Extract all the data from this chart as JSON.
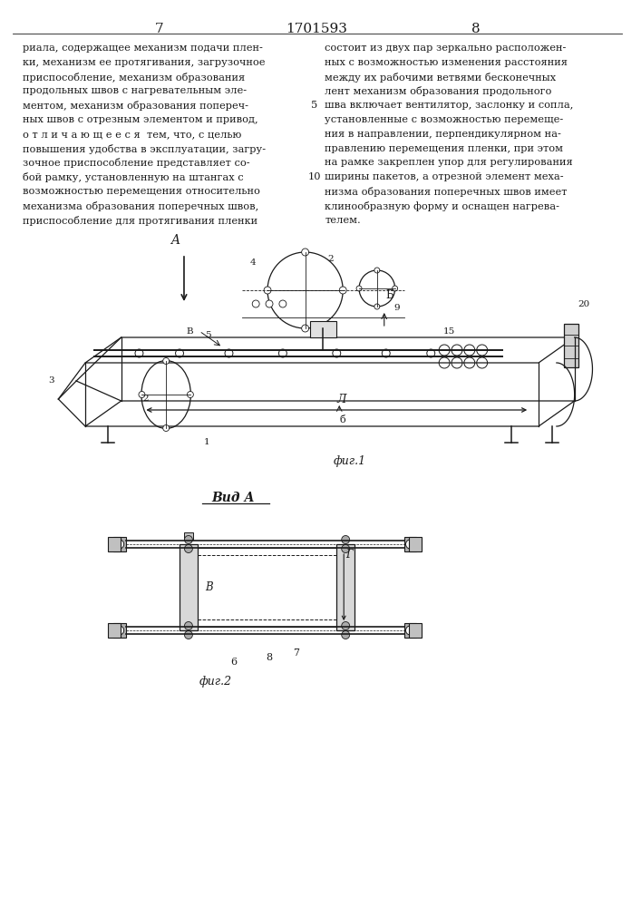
{
  "page_numbers": [
    "7",
    "1701593",
    "8"
  ],
  "left_text": [
    "риала, содержащее механизм подачи плен-",
    "ки, механизм ее протягивания, загрузочное",
    "приспособление, механизм образования",
    "продольных швов с нагревательным эле-",
    "ментом, механизм образования попереч-",
    "ных швов с отрезным элементом и привод,",
    "о т л и ч а ю щ е е с я  тем, что, с целью",
    "повышения удобства в эксплуатации, загру-",
    "зочное приспособление представляет со-",
    "бой рамку, установленную на штангах с",
    "возможностью перемещения относительно",
    "механизма образования поперечных швов,",
    "приспособление для протягивания пленки"
  ],
  "right_text": [
    "состоит из двух пар зеркально расположен-",
    "ных с возможностью изменения расстояния",
    "между их рабочими ветвями бесконечных",
    "лент механизм образования продольного",
    "шва включает вентилятор, заслонку и сопла,",
    "установленные с возможностью перемеще-",
    "ния в направлении, перпендикулярном на-",
    "правлению перемещения пленки, при этом",
    "на рамке закреплен упор для регулирования",
    "ширины пакетов, а отрезной элемент меха-",
    "низма образования поперечных швов имеет",
    "клинообразную форму и оснащен нагрева-",
    "телем."
  ],
  "background_color": "#ffffff",
  "text_color": "#1a1a1a",
  "line_color": "#1a1a1a"
}
